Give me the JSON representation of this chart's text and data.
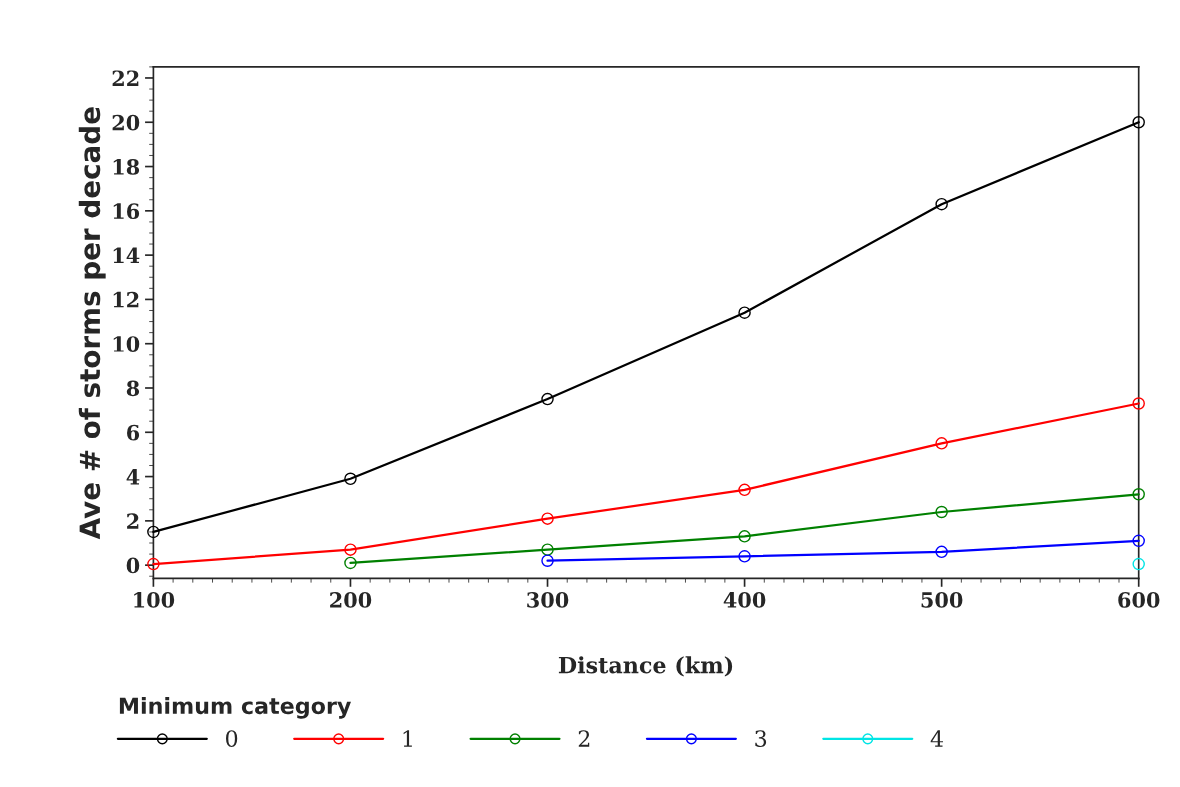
{
  "chart_data": {
    "type": "line",
    "xlabel": "Distance (km)",
    "ylabel": "Ave # of storms per decade",
    "legend_title": "Minimum category",
    "x": [
      100,
      200,
      300,
      400,
      500,
      600
    ],
    "series": [
      {
        "name": "0",
        "color": "#000000",
        "values": [
          1.5,
          3.9,
          7.5,
          11.4,
          16.3,
          20.0
        ]
      },
      {
        "name": "1",
        "color": "#ff0000",
        "values": [
          0.05,
          0.7,
          2.1,
          3.4,
          5.5,
          7.3
        ]
      },
      {
        "name": "2",
        "color": "#008000",
        "values": [
          null,
          0.1,
          0.7,
          1.3,
          2.4,
          3.2
        ]
      },
      {
        "name": "3",
        "color": "#0000ff",
        "values": [
          null,
          null,
          0.2,
          0.4,
          0.6,
          1.1
        ]
      },
      {
        "name": "4",
        "color": "#00e5e5",
        "values": [
          null,
          null,
          null,
          null,
          null,
          0.05
        ]
      }
    ],
    "xlim": [
      100,
      600
    ],
    "xticks": [
      100,
      200,
      300,
      400,
      500,
      600
    ],
    "ylim": [
      -0.6,
      22.5
    ],
    "yticks": [
      0,
      2,
      4,
      6,
      8,
      10,
      12,
      14,
      16,
      18,
      20,
      22
    ],
    "grid": false,
    "legend": "bottom",
    "marker": "circle",
    "line_style": "solid"
  }
}
